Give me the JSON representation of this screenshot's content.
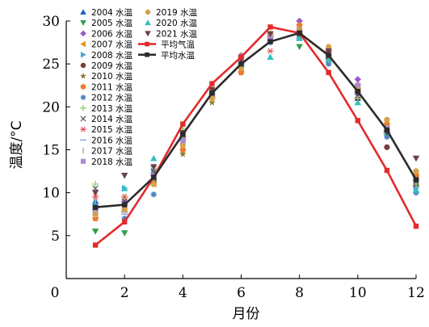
{
  "chart_data": {
    "type": "scatter",
    "title": "",
    "xlabel": "月份",
    "ylabel": "温度/°C",
    "xlim": [
      0,
      12
    ],
    "ylim": [
      0,
      30
    ],
    "xticks": [
      0,
      2,
      4,
      6,
      8,
      10,
      12
    ],
    "yticks": [
      5,
      10,
      15,
      20,
      25,
      30
    ],
    "grid": false,
    "legend_position": "top-left",
    "series": [
      {
        "name": "2004 水温",
        "marker": "triangle-up",
        "color": "#1f5fbf",
        "x": [
          1,
          2,
          3,
          4,
          5,
          6,
          7,
          8,
          9,
          10,
          11,
          12
        ],
        "y": [
          9.0,
          8.0,
          11.5,
          16.5,
          21.5,
          25.0,
          28.5,
          28.0,
          26.0,
          21.0,
          17.0,
          11.0
        ]
      },
      {
        "name": "2005 水温",
        "marker": "triangle-down",
        "color": "#2e9f4e",
        "x": [
          1,
          2,
          3,
          4,
          5,
          6,
          7,
          8,
          9,
          10,
          11,
          12
        ],
        "y": [
          5.5,
          5.3,
          12.0,
          16.0,
          21.0,
          25.5,
          27.5,
          27.0,
          25.0,
          21.5,
          16.5,
          11.5
        ]
      },
      {
        "name": "2006 水温",
        "marker": "diamond",
        "color": "#9b59c8",
        "x": [
          1,
          2,
          3,
          4,
          5,
          6,
          7,
          8,
          9,
          10,
          11,
          12
        ],
        "y": [
          8.0,
          9.0,
          12.0,
          16.5,
          22.0,
          26.0,
          28.5,
          30.0,
          25.5,
          23.2,
          17.0,
          11.0
        ]
      },
      {
        "name": "2007 水温",
        "marker": "triangle-left",
        "color": "#e8931d",
        "x": [
          1,
          2,
          3,
          4,
          5,
          6,
          7,
          8,
          9,
          10,
          11,
          12
        ],
        "y": [
          7.5,
          8.5,
          11.0,
          17.0,
          21.5,
          24.5,
          28.0,
          28.5,
          25.5,
          22.0,
          17.5,
          12.0
        ]
      },
      {
        "name": "2008 水温",
        "marker": "triangle-right",
        "color": "#4aa3df",
        "x": [
          1,
          2,
          3,
          4,
          5,
          6,
          7,
          8,
          9,
          10,
          11,
          12
        ],
        "y": [
          8.5,
          10.5,
          12.5,
          17.0,
          21.5,
          25.0,
          28.0,
          28.5,
          26.0,
          22.0,
          17.0,
          10.5
        ]
      },
      {
        "name": "2009 水温",
        "marker": "circle",
        "color": "#7a3b3b",
        "x": [
          1,
          2,
          3,
          4,
          5,
          6,
          7,
          8,
          9,
          10,
          11,
          12
        ],
        "y": [
          8.0,
          8.5,
          11.5,
          16.0,
          22.0,
          25.5,
          28.0,
          29.0,
          26.5,
          21.0,
          15.3,
          11.0
        ]
      },
      {
        "name": "2010 水温",
        "marker": "star",
        "color": "#8a7a2a",
        "x": [
          1,
          2,
          3,
          4,
          5,
          6,
          7,
          8,
          9,
          10,
          11,
          12
        ],
        "y": [
          7.0,
          8.0,
          11.5,
          14.5,
          20.5,
          24.5,
          28.0,
          28.5,
          25.5,
          22.0,
          17.0,
          12.5
        ]
      },
      {
        "name": "2011 水温",
        "marker": "pentagon",
        "color": "#f07a2a",
        "x": [
          1,
          2,
          3,
          4,
          5,
          6,
          7,
          8,
          9,
          10,
          11,
          12
        ],
        "y": [
          7.0,
          8.5,
          11.0,
          15.0,
          21.0,
          24.0,
          28.0,
          29.5,
          26.0,
          22.5,
          18.0,
          12.0
        ]
      },
      {
        "name": "2012 水温",
        "marker": "ball",
        "color": "#4f86c6",
        "x": [
          1,
          2,
          3,
          4,
          5,
          6,
          7,
          8,
          9,
          10,
          11,
          12
        ],
        "y": [
          7.5,
          7.0,
          9.8,
          16.5,
          21.5,
          25.0,
          27.5,
          28.0,
          25.0,
          21.5,
          16.5,
          10.0
        ]
      },
      {
        "name": "2013 水温",
        "marker": "plus",
        "color": "#8fcf6a",
        "x": [
          1,
          2,
          3,
          4,
          5,
          6,
          7,
          8,
          9,
          10,
          11,
          12
        ],
        "y": [
          11.0,
          9.5,
          13.0,
          17.5,
          22.0,
          26.0,
          28.5,
          28.5,
          26.0,
          21.0,
          17.0,
          11.0
        ]
      },
      {
        "name": "2014 水温",
        "marker": "x",
        "color": "#555555",
        "x": [
          1,
          2,
          3,
          4,
          5,
          6,
          7,
          8,
          9,
          10,
          11,
          12
        ],
        "y": [
          10.5,
          9.0,
          12.5,
          17.0,
          21.5,
          25.5,
          28.0,
          28.0,
          25.5,
          22.0,
          17.5,
          11.0
        ]
      },
      {
        "name": "2015 水温",
        "marker": "asterisk",
        "color": "#e84a4a",
        "x": [
          1,
          2,
          3,
          4,
          5,
          6,
          7,
          8,
          9,
          10,
          11,
          12
        ],
        "y": [
          9.5,
          9.5,
          12.0,
          16.5,
          21.5,
          25.0,
          26.5,
          28.5,
          26.5,
          22.0,
          17.0,
          11.5
        ]
      },
      {
        "name": "2016 水温",
        "marker": "dash",
        "color": "#8fa8d8",
        "x": [
          1,
          2,
          3,
          4,
          5,
          6,
          7,
          8,
          9,
          10,
          11,
          12
        ],
        "y": [
          8.5,
          7.5,
          12.0,
          17.0,
          21.0,
          25.0,
          28.5,
          28.0,
          26.0,
          21.5,
          17.0,
          11.5
        ]
      },
      {
        "name": "2017 水温",
        "marker": "vbar",
        "color": "#8fcf8a",
        "x": [
          1,
          2,
          3,
          4,
          5,
          6,
          7,
          8,
          9,
          10,
          11,
          12
        ],
        "y": [
          9.0,
          8.5,
          11.5,
          16.5,
          21.0,
          25.0,
          28.0,
          28.5,
          25.5,
          22.0,
          17.5,
          11.0
        ]
      },
      {
        "name": "2018 水温",
        "marker": "square",
        "color": "#a98ad8",
        "x": [
          1,
          2,
          3,
          4,
          5,
          6,
          7,
          8,
          9,
          10,
          11,
          12
        ],
        "y": [
          8.0,
          8.0,
          12.0,
          16.0,
          21.5,
          25.5,
          28.0,
          29.0,
          26.0,
          22.5,
          17.5,
          11.5
        ]
      },
      {
        "name": "2019 水温",
        "marker": "circle",
        "color": "#d4a24c",
        "x": [
          1,
          2,
          3,
          4,
          5,
          6,
          7,
          8,
          9,
          10,
          11,
          12
        ],
        "y": [
          7.5,
          8.0,
          11.0,
          15.5,
          21.0,
          24.5,
          28.5,
          29.0,
          27.0,
          22.0,
          18.5,
          12.5
        ]
      },
      {
        "name": "2020 水温",
        "marker": "triangle-up",
        "color": "#32c0bf",
        "x": [
          1,
          2,
          3,
          4,
          5,
          6,
          7,
          8,
          9,
          10,
          11,
          12
        ],
        "y": [
          8.5,
          10.5,
          14.0,
          17.0,
          22.0,
          25.0,
          25.8,
          28.0,
          25.5,
          20.5,
          17.0,
          10.3
        ]
      },
      {
        "name": "2021 水温",
        "marker": "triangle-down",
        "color": "#6b3f4f",
        "x": [
          1,
          2,
          3,
          4,
          5,
          6,
          7,
          8,
          9,
          10,
          11,
          12
        ],
        "y": [
          10.0,
          12.0,
          13.0,
          17.0,
          22.0,
          25.5,
          28.5,
          28.5,
          26.5,
          21.5,
          17.0,
          14.0
        ]
      },
      {
        "name": "平均气温",
        "marker": "square",
        "line": true,
        "color": "#e32b2b",
        "x": [
          1,
          2,
          3,
          4,
          5,
          6,
          7,
          8,
          9,
          10,
          11,
          12
        ],
        "y": [
          3.9,
          6.6,
          11.8,
          18.0,
          22.7,
          25.8,
          29.3,
          28.6,
          24.0,
          18.4,
          12.6,
          6.1
        ]
      },
      {
        "name": "平均水温",
        "marker": "square",
        "line": true,
        "color": "#2b2b2b",
        "x": [
          1,
          2,
          3,
          4,
          5,
          6,
          7,
          8,
          9,
          10,
          11,
          12
        ],
        "y": [
          8.3,
          8.6,
          11.8,
          16.8,
          21.6,
          25.0,
          27.6,
          28.6,
          26.0,
          21.8,
          17.3,
          11.5
        ]
      }
    ]
  }
}
